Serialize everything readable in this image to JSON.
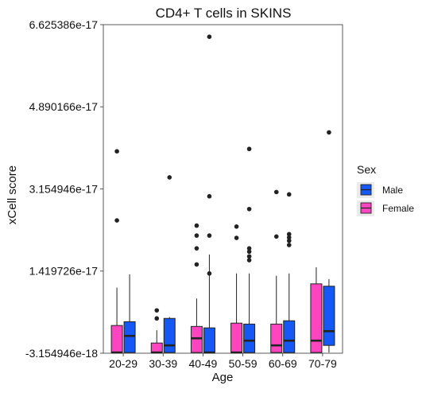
{
  "chart_data": {
    "type": "boxplot",
    "title": "CD4+ T cells in SKINS",
    "xlabel": "Age",
    "ylabel": "xCell score",
    "categories": [
      "20-29",
      "30-39",
      "40-49",
      "50-59",
      "60-69",
      "70-79"
    ],
    "y_ticks": [
      -3.154946e-18,
      1.419726e-17,
      3.154946e-17,
      4.890166e-17,
      6.625386e-17
    ],
    "y_tick_labels": [
      "-3.154946e-18",
      "1.419726e-17",
      "3.154946e-17",
      "4.890166e-17",
      "6.625386e-17"
    ],
    "ylim": [
      -3.154946e-18,
      6.625386e-17
    ],
    "grid": false,
    "legend": {
      "title": "Sex",
      "placement": "right",
      "entries": [
        {
          "name": "Male",
          "color": "#1558f5"
        },
        {
          "name": "Female",
          "color": "#ff44c0"
        }
      ]
    },
    "series": [
      {
        "name": "Female",
        "color": "#ff44c0",
        "boxes": [
          {
            "category": "20-29",
            "whisker_low": -3e-18,
            "q1": -3e-18,
            "median": -3e-18,
            "q3": 2.7e-18,
            "whisker_high": 1.07e-17,
            "outliers": [
              3.95e-17,
              2.49e-17
            ]
          },
          {
            "category": "30-39",
            "whisker_low": -3e-18,
            "q1": -3e-18,
            "median": -3e-18,
            "q3": -1e-18,
            "whisker_high": 1.7e-18,
            "outliers": [
              5.9e-18,
              4.2e-18
            ]
          },
          {
            "category": "40-49",
            "whisker_low": -3e-18,
            "q1": -3e-18,
            "median": 0.0,
            "q3": 2.5e-18,
            "whisker_high": 8.4e-18,
            "outliers": [
              2.38e-17,
              2.17e-17,
              1.9e-17,
              1.56e-17
            ]
          },
          {
            "category": "50-59",
            "whisker_low": -3e-18,
            "q1": -3e-18,
            "median": -3e-18,
            "q3": 3.2e-18,
            "whisker_high": 1.37e-17,
            "outliers": [
              2.36e-17,
              2.12e-17
            ]
          },
          {
            "category": "60-69",
            "whisker_low": -3e-18,
            "q1": -3e-18,
            "median": -1.5e-18,
            "q3": 3e-18,
            "whisker_high": 1.32e-17,
            "outliers": [
              3.09e-17,
              2.15e-17
            ]
          },
          {
            "category": "70-79",
            "whisker_low": -3e-18,
            "q1": -3e-18,
            "median": -5e-19,
            "q3": 1.15e-17,
            "whisker_high": 1.5e-17,
            "outliers": []
          }
        ]
      },
      {
        "name": "Male",
        "color": "#1558f5",
        "boxes": [
          {
            "category": "20-29",
            "whisker_low": -3e-18,
            "q1": -3e-18,
            "median": 5e-19,
            "q3": 3.5e-18,
            "whisker_high": 1.35e-17,
            "outliers": []
          },
          {
            "category": "30-39",
            "whisker_low": -3e-18,
            "q1": -3e-18,
            "median": -1.5e-18,
            "q3": 4.2e-18,
            "whisker_high": 4.5e-18,
            "outliers": [
              3.4e-17
            ]
          },
          {
            "category": "40-49",
            "whisker_low": -3e-18,
            "q1": -3e-18,
            "median": -3e-18,
            "q3": 2.2e-18,
            "whisker_high": 1.77e-17,
            "outliers": [
              6.37e-17,
              3e-17,
              2.17e-17,
              1.37e-17
            ]
          },
          {
            "category": "50-59",
            "whisker_low": -3e-18,
            "q1": -3e-18,
            "median": -5e-19,
            "q3": 3e-18,
            "whisker_high": 1.37e-17,
            "outliers": [
              4e-17,
              2.73e-17,
              1.9e-17,
              1.83e-17,
              1.73e-17,
              1.65e-17
            ]
          },
          {
            "category": "60-69",
            "whisker_low": -3e-18,
            "q1": -3e-18,
            "median": -5e-19,
            "q3": 3.7e-18,
            "whisker_high": 1.37e-17,
            "outliers": [
              3.04e-17,
              2.2e-17,
              2.13e-17,
              2.06e-17,
              1.97e-17
            ]
          },
          {
            "category": "70-79",
            "whisker_low": -3e-18,
            "q1": -1.5e-18,
            "median": 1.5e-18,
            "q3": 1.1e-17,
            "whisker_high": 1.25e-17,
            "outliers": [
              4.35e-17
            ]
          }
        ]
      }
    ]
  }
}
